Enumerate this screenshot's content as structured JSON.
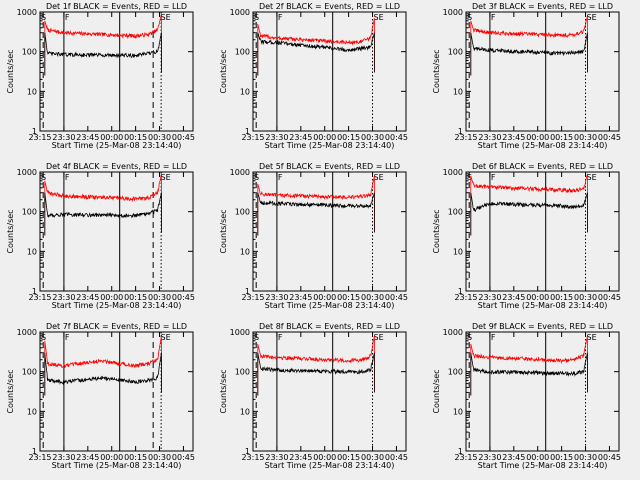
{
  "start_time_label": "Start Time (25-Mar-08 23:14:40)",
  "ylabel": "Counts/sec",
  "colors": {
    "events": "#000000",
    "lld": "#ff0000",
    "background": "#efefef"
  },
  "chart_data": [
    {
      "type": "line",
      "title": "Det 1f BLACK = Events, RED = LLD",
      "x_ticks": [
        "23:15",
        "23:30",
        "23:45",
        "00:00",
        "00:15",
        "00:30",
        "00:45"
      ],
      "y_ticks": [
        "1",
        "10",
        "100",
        "1000"
      ],
      "ylim": [
        1,
        1000
      ],
      "y_scale": "log",
      "markers": [
        {
          "label": "S",
          "x": "23:15"
        },
        {
          "label": "F",
          "x": "23:30"
        },
        {
          "label": "SE",
          "x": "00:30"
        }
      ],
      "vlines": [
        {
          "x": "23:17",
          "style": "dashed"
        },
        {
          "x": "23:30",
          "style": "solid"
        },
        {
          "x": "00:05",
          "style": "solid"
        },
        {
          "x": "00:26",
          "style": "dashed"
        },
        {
          "x": "00:31",
          "style": "dotted"
        },
        {
          "x": "00:51",
          "style": "dashdot"
        }
      ],
      "series": [
        {
          "values": [
            [
              23.3,
              600
            ],
            [
              23.33,
              350
            ],
            [
              23.5,
              300
            ],
            [
              24.25,
              250
            ],
            [
              24.38,
              270
            ],
            [
              24.48,
              350
            ],
            [
              24.52,
              900
            ]
          ]
        },
        {
          "values": [
            [
              23.3,
              300
            ],
            [
              23.33,
              90
            ],
            [
              23.5,
              85
            ],
            [
              24.25,
              80
            ],
            [
              24.38,
              90
            ],
            [
              24.48,
              100
            ],
            [
              24.52,
              300
            ]
          ]
        }
      ]
    },
    {
      "type": "line",
      "title": "Det 2f BLACK = Events, RED = LLD",
      "x_ticks": [
        "23:15",
        "23:30",
        "23:45",
        "00:00",
        "00:15",
        "00:30",
        "00:45"
      ],
      "y_ticks": [
        "1",
        "10",
        "100",
        "1000"
      ],
      "ylim": [
        1,
        1000
      ],
      "y_scale": "log",
      "markers": [
        {
          "label": "S",
          "x": "23:15"
        },
        {
          "label": "F",
          "x": "23:30"
        },
        {
          "label": "SE",
          "x": "00:30"
        }
      ],
      "vlines": [
        {
          "x": "23:17",
          "style": "dashed"
        },
        {
          "x": "23:30",
          "style": "solid"
        },
        {
          "x": "00:05",
          "style": "solid"
        },
        {
          "x": "00:30",
          "style": "dotted"
        },
        {
          "x": "00:51",
          "style": "dashdot"
        }
      ],
      "series": [
        {
          "values": [
            [
              23.3,
              500
            ],
            [
              23.33,
              250
            ],
            [
              23.5,
              220
            ],
            [
              24.25,
              170
            ],
            [
              24.38,
              180
            ],
            [
              24.48,
              220
            ],
            [
              24.52,
              700
            ]
          ]
        },
        {
          "values": [
            [
              23.3,
              300
            ],
            [
              23.33,
              180
            ],
            [
              23.5,
              170
            ],
            [
              24.25,
              110
            ],
            [
              24.38,
              120
            ],
            [
              24.48,
              130
            ],
            [
              24.52,
              300
            ]
          ]
        }
      ]
    },
    {
      "type": "line",
      "title": "Det 3f BLACK = Events, RED = LLD",
      "x_ticks": [
        "23:15",
        "23:30",
        "23:45",
        "00:00",
        "00:15",
        "00:30",
        "00:45"
      ],
      "y_ticks": [
        "1",
        "10",
        "100",
        "1000"
      ],
      "ylim": [
        1,
        1000
      ],
      "y_scale": "log",
      "markers": [
        {
          "label": "S",
          "x": "23:15"
        },
        {
          "label": "F",
          "x": "23:30"
        },
        {
          "label": "SE",
          "x": "00:30"
        }
      ],
      "vlines": [
        {
          "x": "23:17",
          "style": "dashed"
        },
        {
          "x": "23:30",
          "style": "solid"
        },
        {
          "x": "00:05",
          "style": "solid"
        },
        {
          "x": "00:30",
          "style": "dotted"
        },
        {
          "x": "00:51",
          "style": "dashdot"
        }
      ],
      "series": [
        {
          "values": [
            [
              23.3,
              600
            ],
            [
              23.33,
              350
            ],
            [
              23.5,
              300
            ],
            [
              24.25,
              260
            ],
            [
              24.38,
              270
            ],
            [
              24.48,
              320
            ],
            [
              24.52,
              800
            ]
          ]
        },
        {
          "values": [
            [
              23.3,
              300
            ],
            [
              23.33,
              120
            ],
            [
              23.5,
              110
            ],
            [
              24.25,
              90
            ],
            [
              24.38,
              95
            ],
            [
              24.48,
              100
            ],
            [
              24.52,
              300
            ]
          ]
        }
      ]
    },
    {
      "type": "line",
      "title": "Det 4f BLACK = Events, RED = LLD",
      "x_ticks": [
        "23:15",
        "23:30",
        "23:45",
        "00:00",
        "00:15",
        "00:30",
        "00:45"
      ],
      "y_ticks": [
        "1",
        "10",
        "100",
        "1000"
      ],
      "ylim": [
        1,
        1000
      ],
      "y_scale": "log",
      "markers": [
        {
          "label": "S",
          "x": "23:15"
        },
        {
          "label": "F",
          "x": "23:30"
        },
        {
          "label": "SE",
          "x": "00:30"
        }
      ],
      "vlines": [
        {
          "x": "23:17",
          "style": "dashed"
        },
        {
          "x": "23:30",
          "style": "solid"
        },
        {
          "x": "00:05",
          "style": "solid"
        },
        {
          "x": "00:26",
          "style": "dashed"
        },
        {
          "x": "00:31",
          "style": "dotted"
        },
        {
          "x": "00:51",
          "style": "dashdot"
        }
      ],
      "series": [
        {
          "values": [
            [
              23.3,
              600
            ],
            [
              23.33,
              300
            ],
            [
              23.5,
              250
            ],
            [
              24.25,
              210
            ],
            [
              24.38,
              220
            ],
            [
              24.48,
              300
            ],
            [
              24.52,
              900
            ]
          ]
        },
        {
          "values": [
            [
              23.3,
              300
            ],
            [
              23.33,
              80
            ],
            [
              23.5,
              85
            ],
            [
              24.25,
              80
            ],
            [
              24.38,
              90
            ],
            [
              24.48,
              110
            ],
            [
              24.52,
              300
            ]
          ]
        }
      ]
    },
    {
      "type": "line",
      "title": "Det 5f BLACK = Events, RED = LLD",
      "x_ticks": [
        "23:15",
        "23:30",
        "23:45",
        "00:00",
        "00:15",
        "00:30",
        "00:45"
      ],
      "y_ticks": [
        "1",
        "10",
        "100",
        "1000"
      ],
      "ylim": [
        1,
        1000
      ],
      "y_scale": "log",
      "markers": [
        {
          "label": "S",
          "x": "23:15"
        },
        {
          "label": "F",
          "x": "23:30"
        },
        {
          "label": "SE",
          "x": "00:30"
        }
      ],
      "vlines": [
        {
          "x": "23:17",
          "style": "dashed"
        },
        {
          "x": "23:30",
          "style": "solid"
        },
        {
          "x": "00:05",
          "style": "solid"
        },
        {
          "x": "00:30",
          "style": "dotted"
        },
        {
          "x": "00:51",
          "style": "dashdot"
        }
      ],
      "series": [
        {
          "values": [
            [
              23.3,
              500
            ],
            [
              23.33,
              280
            ],
            [
              23.5,
              260
            ],
            [
              24.25,
              230
            ],
            [
              24.38,
              240
            ],
            [
              24.48,
              260
            ],
            [
              24.52,
              800
            ]
          ]
        },
        {
          "values": [
            [
              23.3,
              300
            ],
            [
              23.33,
              170
            ],
            [
              23.5,
              160
            ],
            [
              24.25,
              140
            ],
            [
              24.38,
              140
            ],
            [
              24.48,
              140
            ],
            [
              24.52,
              300
            ]
          ]
        }
      ]
    },
    {
      "type": "line",
      "title": "Det 6f BLACK = Events, RED = LLD",
      "x_ticks": [
        "23:15",
        "23:30",
        "23:45",
        "00:00",
        "00:15",
        "00:30",
        "00:45"
      ],
      "y_ticks": [
        "1",
        "10",
        "100",
        "1000"
      ],
      "ylim": [
        1,
        1000
      ],
      "y_scale": "log",
      "markers": [
        {
          "label": "S",
          "x": "23:15"
        },
        {
          "label": "F",
          "x": "23:30"
        },
        {
          "label": "SE",
          "x": "00:30"
        }
      ],
      "vlines": [
        {
          "x": "23:17",
          "style": "dashed"
        },
        {
          "x": "23:30",
          "style": "solid"
        },
        {
          "x": "00:05",
          "style": "solid"
        },
        {
          "x": "00:30",
          "style": "dotted"
        },
        {
          "x": "00:51",
          "style": "dashdot"
        }
      ],
      "series": [
        {
          "values": [
            [
              23.3,
              800
            ],
            [
              23.33,
              450
            ],
            [
              23.5,
              420
            ],
            [
              24.25,
              350
            ],
            [
              24.38,
              340
            ],
            [
              24.48,
              380
            ],
            [
              24.52,
              900
            ]
          ]
        },
        {
          "values": [
            [
              23.3,
              300
            ],
            [
              23.33,
              110
            ],
            [
              23.5,
              160
            ],
            [
              24.25,
              140
            ],
            [
              24.38,
              130
            ],
            [
              24.48,
              140
            ],
            [
              24.52,
              300
            ]
          ]
        }
      ]
    },
    {
      "type": "line",
      "title": "Det 7f BLACK = Events, RED = LLD",
      "x_ticks": [
        "23:15",
        "23:30",
        "23:45",
        "00:00",
        "00:15",
        "00:30",
        "00:45"
      ],
      "y_ticks": [
        "1",
        "10",
        "100",
        "1000"
      ],
      "ylim": [
        1,
        1000
      ],
      "y_scale": "log",
      "markers": [
        {
          "label": "S",
          "x": "23:15"
        },
        {
          "label": "F",
          "x": "23:30"
        },
        {
          "label": "SE",
          "x": "00:30"
        }
      ],
      "vlines": [
        {
          "x": "23:17",
          "style": "dashed"
        },
        {
          "x": "23:30",
          "style": "solid"
        },
        {
          "x": "00:05",
          "style": "solid"
        },
        {
          "x": "00:26",
          "style": "dashed"
        },
        {
          "x": "00:31",
          "style": "dotted"
        },
        {
          "x": "00:51",
          "style": "dashdot"
        }
      ],
      "series": [
        {
          "values": [
            [
              23.3,
              600
            ],
            [
              23.33,
              160
            ],
            [
              23.5,
              140
            ],
            [
              23.9,
              190
            ],
            [
              24.25,
              140
            ],
            [
              24.38,
              160
            ],
            [
              24.48,
              200
            ],
            [
              24.52,
              800
            ]
          ]
        },
        {
          "values": [
            [
              23.3,
              300
            ],
            [
              23.33,
              60
            ],
            [
              23.5,
              55
            ],
            [
              23.9,
              70
            ],
            [
              24.25,
              55
            ],
            [
              24.38,
              60
            ],
            [
              24.48,
              70
            ],
            [
              24.52,
              300
            ]
          ]
        }
      ]
    },
    {
      "type": "line",
      "title": "Det 8f BLACK = Events, RED = LLD",
      "x_ticks": [
        "23:15",
        "23:30",
        "23:45",
        "00:00",
        "00:15",
        "00:30",
        "00:45"
      ],
      "y_ticks": [
        "1",
        "10",
        "100",
        "1000"
      ],
      "ylim": [
        1,
        1000
      ],
      "y_scale": "log",
      "markers": [
        {
          "label": "S",
          "x": "23:15"
        },
        {
          "label": "F",
          "x": "23:30"
        },
        {
          "label": "SE",
          "x": "00:30"
        }
      ],
      "vlines": [
        {
          "x": "23:17",
          "style": "dashed"
        },
        {
          "x": "23:30",
          "style": "solid"
        },
        {
          "x": "00:05",
          "style": "solid"
        },
        {
          "x": "00:30",
          "style": "dotted"
        },
        {
          "x": "00:51",
          "style": "dashdot"
        }
      ],
      "series": [
        {
          "values": [
            [
              23.3,
              500
            ],
            [
              23.33,
              250
            ],
            [
              23.5,
              230
            ],
            [
              24.25,
              190
            ],
            [
              24.38,
              200
            ],
            [
              24.48,
              250
            ],
            [
              24.52,
              800
            ]
          ]
        },
        {
          "values": [
            [
              23.3,
              300
            ],
            [
              23.33,
              120
            ],
            [
              23.5,
              110
            ],
            [
              24.25,
              100
            ],
            [
              24.38,
              100
            ],
            [
              24.48,
              110
            ],
            [
              24.52,
              300
            ]
          ]
        }
      ]
    },
    {
      "type": "line",
      "title": "Det 9f BLACK = Events, RED = LLD",
      "x_ticks": [
        "23:15",
        "23:30",
        "23:45",
        "00:00",
        "00:15",
        "00:30",
        "00:45"
      ],
      "y_ticks": [
        "1",
        "10",
        "100",
        "1000"
      ],
      "ylim": [
        1,
        1000
      ],
      "y_scale": "log",
      "markers": [
        {
          "label": "S",
          "x": "23:15"
        },
        {
          "label": "F",
          "x": "23:30"
        },
        {
          "label": "SE",
          "x": "00:30"
        }
      ],
      "vlines": [
        {
          "x": "23:17",
          "style": "dashed"
        },
        {
          "x": "23:30",
          "style": "solid"
        },
        {
          "x": "00:05",
          "style": "solid"
        },
        {
          "x": "00:30",
          "style": "dotted"
        },
        {
          "x": "00:51",
          "style": "dashdot"
        }
      ],
      "series": [
        {
          "values": [
            [
              23.3,
              500
            ],
            [
              23.33,
              250
            ],
            [
              23.5,
              230
            ],
            [
              24.25,
              190
            ],
            [
              24.38,
              200
            ],
            [
              24.48,
              250
            ],
            [
              24.52,
              800
            ]
          ]
        },
        {
          "values": [
            [
              23.3,
              300
            ],
            [
              23.33,
              110
            ],
            [
              23.5,
              100
            ],
            [
              24.25,
              90
            ],
            [
              24.38,
              90
            ],
            [
              24.48,
              100
            ],
            [
              24.52,
              300
            ]
          ]
        }
      ]
    }
  ]
}
